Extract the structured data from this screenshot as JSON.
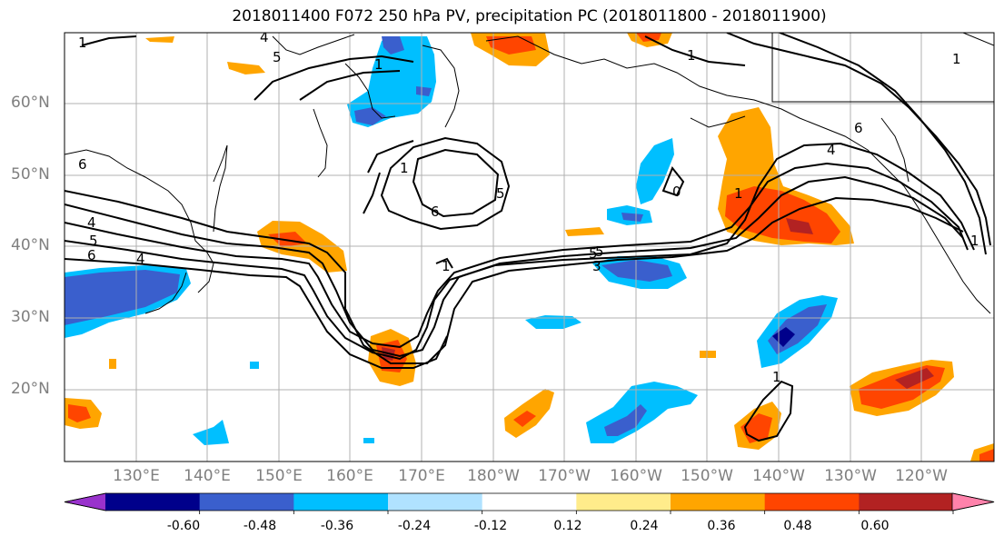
{
  "title": "2018011400 F072 250 hPa PV, precipitation PC (2018011800 - 2018011900)",
  "lat_labels": [
    "60°N",
    "50°N",
    "40°N",
    "30°N",
    "20°N"
  ],
  "lon_labels": [
    "130°E",
    "140°E",
    "150°E",
    "160°E",
    "170°E",
    "180°W",
    "170°W",
    "160°W",
    "150°W",
    "140°W",
    "130°W",
    "120°W"
  ],
  "colorbar": {
    "ticks": [
      "-0.60",
      "-0.48",
      "-0.36",
      "-0.24",
      "-0.12",
      "0.12",
      "0.24",
      "0.36",
      "0.48",
      "0.60"
    ],
    "colors": [
      "#9932cc",
      "#00008b",
      "#3a5fcd",
      "#00bfff",
      "#b0e2ff",
      "#ffffff",
      "#ffec8b",
      "#ffa500",
      "#ff4500",
      "#b22222",
      "#ff82ab"
    ]
  },
  "contour_labels": [
    "1",
    "4",
    "5",
    "1",
    "1",
    "5",
    "6",
    "1",
    "5",
    "6",
    "4",
    "5",
    "6",
    "4",
    "1",
    "1",
    "5",
    "3",
    "0",
    "1",
    "1",
    "6",
    "4",
    "1"
  ]
}
